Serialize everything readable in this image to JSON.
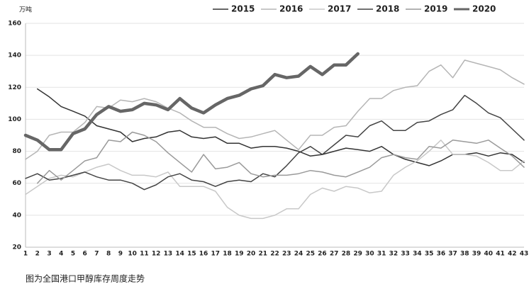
{
  "chart_data": {
    "type": "line",
    "y_unit": "万吨",
    "caption": "图为全国港口甲醇库存周度走势",
    "categories": [
      "1",
      "2",
      "3",
      "4",
      "5",
      "6",
      "7",
      "8",
      "9",
      "10",
      "11",
      "12",
      "13",
      "14",
      "15",
      "16",
      "17",
      "18",
      "19",
      "20",
      "21",
      "22",
      "23",
      "24",
      "25",
      "26",
      "27",
      "28",
      "29",
      "30",
      "31",
      "32",
      "33",
      "34",
      "35",
      "36",
      "37",
      "38",
      "39",
      "40",
      "41",
      "42",
      "43"
    ],
    "ylim": [
      20,
      160
    ],
    "yticks": [
      20,
      40,
      60,
      80,
      100,
      120,
      140,
      160
    ],
    "grid": true,
    "legend": "top",
    "series": [
      {
        "name": "2015",
        "color": "#333333",
        "width": 1.5,
        "values": [
          null,
          119,
          114,
          108,
          105,
          102,
          96,
          94,
          92,
          86,
          88,
          89,
          92,
          93,
          89,
          88,
          89,
          85,
          85,
          82,
          83,
          83,
          82,
          80,
          77,
          78,
          80,
          82,
          81,
          80,
          83,
          78,
          75,
          73,
          71,
          74,
          78,
          78,
          79,
          77,
          79,
          78,
          73
        ]
      },
      {
        "name": "2016",
        "color": "#b5b5b5",
        "width": 1.5,
        "values": [
          75,
          80,
          90,
          92,
          92,
          98,
          108,
          107,
          112,
          111,
          113,
          111,
          107,
          104,
          99,
          95,
          95,
          91,
          88,
          89,
          91,
          93,
          87,
          81,
          90,
          90,
          95,
          96,
          105,
          113,
          113,
          118,
          120,
          121,
          130,
          134,
          126,
          137,
          135,
          133,
          131,
          126,
          122
        ]
      },
      {
        "name": "2017",
        "color": "#c8c8c8",
        "width": 1.5,
        "values": [
          53,
          58,
          63,
          65,
          64,
          67,
          70,
          72,
          68,
          65,
          65,
          64,
          67,
          58,
          58,
          58,
          55,
          45,
          40,
          38,
          38,
          40,
          44,
          44,
          53,
          57,
          55,
          58,
          57,
          54,
          55,
          65,
          70,
          74,
          80,
          87,
          78,
          78,
          77,
          73,
          68,
          68,
          74
        ]
      },
      {
        "name": "2018",
        "color": "#444444",
        "width": 1.5,
        "values": [
          63,
          66,
          62,
          63,
          65,
          67,
          64,
          62,
          62,
          60,
          56,
          59,
          64,
          66,
          62,
          61,
          58,
          61,
          62,
          61,
          66,
          64,
          71,
          79,
          83,
          78,
          84,
          90,
          89,
          96,
          99,
          93,
          93,
          98,
          99,
          103,
          106,
          115,
          110,
          104,
          101,
          94,
          87
        ]
      },
      {
        "name": "2019",
        "color": "#9a9a9a",
        "width": 1.5,
        "values": [
          null,
          60,
          68,
          62,
          68,
          74,
          76,
          87,
          86,
          92,
          90,
          86,
          79,
          73,
          67,
          78,
          69,
          70,
          73,
          66,
          64,
          65,
          65,
          66,
          68,
          67,
          65,
          64,
          67,
          70,
          76,
          78,
          76,
          75,
          83,
          82,
          87,
          86,
          85,
          87,
          82,
          77,
          70
        ]
      },
      {
        "name": "2020",
        "color": "#666666",
        "width": 4.5,
        "values": [
          90,
          87,
          81,
          81,
          91,
          94,
          103,
          108,
          105,
          106,
          110,
          109,
          106,
          113,
          107,
          104,
          109,
          113,
          115,
          119,
          121,
          128,
          126,
          127,
          133,
          128,
          134,
          134,
          141,
          null,
          null,
          null,
          null,
          null,
          null,
          null,
          null,
          null,
          null,
          null,
          null,
          null,
          null
        ]
      }
    ]
  }
}
